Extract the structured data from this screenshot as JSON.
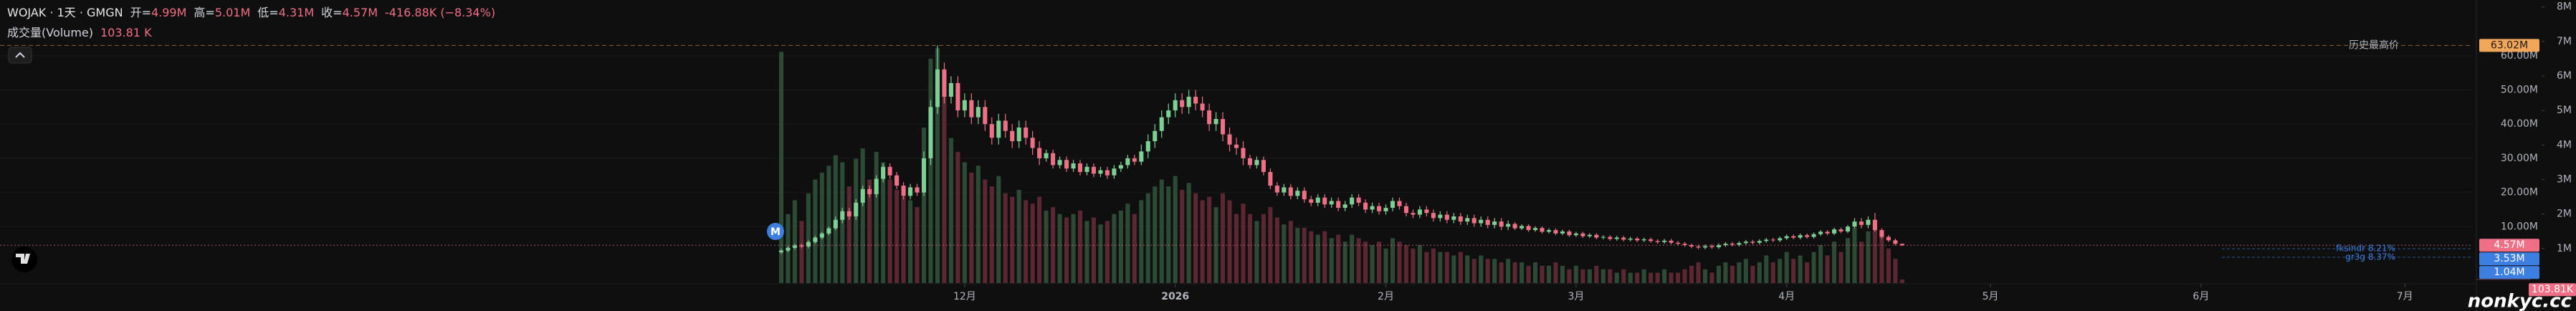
{
  "chart_data": {
    "type": "candlestick",
    "title": "WOJAK · 1天 · GMGN",
    "ohlc_legend": [
      {
        "label": "开=",
        "value": "4.99M"
      },
      {
        "label": "高=",
        "value": "5.01M"
      },
      {
        "label": "低=",
        "value": "4.31M"
      },
      {
        "label": "收=",
        "value": "4.57M"
      }
    ],
    "change": "-416.88K (−8.34%)",
    "volume_legend": {
      "name": "成交量(Volume)",
      "value": "103.81 K"
    },
    "up_color": "#7ccf95",
    "down_color": "#ef6f86",
    "volume_up_color": "#2d4a36",
    "volume_down_color": "#5a2733",
    "grid": true,
    "xlim": [
      -115,
      249
    ],
    "xticks": [
      {
        "value": 27,
        "label": "12月"
      },
      {
        "value": 58,
        "label": "2026"
      },
      {
        "value": 89,
        "label": "2月"
      },
      {
        "value": 117,
        "label": "3月"
      },
      {
        "value": 148,
        "label": "4月"
      },
      {
        "value": 178,
        "label": "5月"
      },
      {
        "value": 209,
        "label": "6月"
      },
      {
        "value": 239,
        "label": "7月"
      }
    ],
    "ylim": [
      -6500000,
      76300000
    ],
    "yticks": [
      {
        "value": 10000000,
        "label": "10.00M"
      },
      {
        "value": 20000000,
        "label": "20.00M"
      },
      {
        "value": 30000000,
        "label": "30.00M"
      },
      {
        "value": 40000000,
        "label": "40.00M"
      },
      {
        "value": 50000000,
        "label": "50.00M"
      },
      {
        "value": 60000000,
        "label": "60.00M"
      }
    ],
    "y2lim": [
      0,
      8200000
    ],
    "y2ticks": [
      {
        "value": 1000000,
        "label": "1M"
      },
      {
        "value": 2000000,
        "label": "2M"
      },
      {
        "value": 3000000,
        "label": "3M"
      },
      {
        "value": 4000000,
        "label": "4M"
      },
      {
        "value": 5000000,
        "label": "5M"
      },
      {
        "value": 6000000,
        "label": "6M"
      },
      {
        "value": 7000000,
        "label": "7M"
      },
      {
        "value": 8000000,
        "label": "8M"
      }
    ],
    "open": [
      2500000,
      3000000,
      3800000,
      4500000,
      4200000,
      5500000,
      6800000,
      8000000,
      9500000,
      12000000,
      14500000,
      13000000,
      17000000,
      21000000,
      19500000,
      24000000,
      27500000,
      25000000,
      22000000,
      19000000,
      21500000,
      20000000,
      30000000,
      45000000,
      56000000,
      48000000,
      52000000,
      44000000,
      47000000,
      42000000,
      45000000,
      40000000,
      36000000,
      41000000,
      38000000,
      35000000,
      39000000,
      36000000,
      33000000,
      30000000,
      31500000,
      28000000,
      29500000,
      27000000,
      28500000,
      26000000,
      27500000,
      25500000,
      26500000,
      25000000,
      27000000,
      28000000,
      30000000,
      29000000,
      32000000,
      35000000,
      38000000,
      42000000,
      44000000,
      47000000,
      45000000,
      48000000,
      46000000,
      44000000,
      40000000,
      41500000,
      37000000,
      34000000,
      33000000,
      30000000,
      28000000,
      29500000,
      26000000,
      22000000,
      20000000,
      21500000,
      19000000,
      20500000,
      18000000,
      17000000,
      18500000,
      16500000,
      17500000,
      15500000,
      16500000,
      18500000,
      17000000,
      15000000,
      16000000,
      14500000,
      15500000,
      17500000,
      16000000,
      14000000,
      13500000,
      15000000,
      14000000,
      12500000,
      13500000,
      12000000,
      13000000,
      11500000,
      12500000,
      11000000,
      12000000,
      10500000,
      11500000,
      10000000,
      10800000,
      9500000,
      10200000,
      9000000,
      9600000,
      8500000,
      9000000,
      8000000,
      8600000,
      7500000,
      8000000,
      7200000,
      7600000,
      6800000,
      7000000,
      6400000,
      6800000,
      6200000,
      6500000,
      6000000,
      6300000,
      5800000,
      5500000,
      5900000,
      5300000,
      5000000,
      4600000,
      4200000,
      3900000,
      4300000,
      4000000,
      4600000,
      5000000,
      4700000,
      5200000,
      5600000,
      5300000,
      5800000,
      6200000,
      6000000,
      6600000,
      7200000,
      6800000,
      7500000,
      7000000,
      7800000,
      8500000,
      8000000,
      9200000,
      8600000,
      10000000,
      11500000,
      10500000,
      12000000,
      9000000,
      7000000,
      6000000,
      4990000
    ],
    "high": [
      3500000,
      4300000,
      5000000,
      5000000,
      6000000,
      7300000,
      8500000,
      10000000,
      13000000,
      15500000,
      15500000,
      18000000,
      22000000,
      22000000,
      25000000,
      28500000,
      28500000,
      26000000,
      23000000,
      22500000,
      22500000,
      32000000,
      47000000,
      63020000,
      58000000,
      54000000,
      54000000,
      49000000,
      49000000,
      47000000,
      47000000,
      42000000,
      43000000,
      43000000,
      40000000,
      41000000,
      41000000,
      38000000,
      35000000,
      32500000,
      32500000,
      30500000,
      30500000,
      29500000,
      29500000,
      28500000,
      28500000,
      27500000,
      27500000,
      28000000,
      29000000,
      31000000,
      31000000,
      34000000,
      37000000,
      40000000,
      44000000,
      46000000,
      49000000,
      49000000,
      50000000,
      50000000,
      48000000,
      46000000,
      43500000,
      43500000,
      39000000,
      36000000,
      35000000,
      31000000,
      30500000,
      30500000,
      27000000,
      23000000,
      22500000,
      22500000,
      21500000,
      21500000,
      19000000,
      19500000,
      19500000,
      18500000,
      18500000,
      17500000,
      19500000,
      19500000,
      18000000,
      17000000,
      17000000,
      16500000,
      18500000,
      18500000,
      17000000,
      15000000,
      16000000,
      16000000,
      15000000,
      14500000,
      14500000,
      14000000,
      14000000,
      13500000,
      13500000,
      13000000,
      13000000,
      12500000,
      12500000,
      11800000,
      11300000,
      10700000,
      10700000,
      10100000,
      10100000,
      9500000,
      9500000,
      9100000,
      9100000,
      8500000,
      8500000,
      8100000,
      8100000,
      7500000,
      7500000,
      7300000,
      7300000,
      7000000,
      7000000,
      6800000,
      6800000,
      6300000,
      6400000,
      6400000,
      5800000,
      5500000,
      5100000,
      4700000,
      4800000,
      4800000,
      5100000,
      5500000,
      5500000,
      5700000,
      6100000,
      6100000,
      6300000,
      6700000,
      6700000,
      7100000,
      7700000,
      7700000,
      8000000,
      8000000,
      8300000,
      9000000,
      9000000,
      9700000,
      9700000,
      10500000,
      12500000,
      12500000,
      13000000,
      14000000,
      9500000,
      7500000,
      6500000,
      5010000
    ],
    "low": [
      2000000,
      2500000,
      3300000,
      3700000,
      3700000,
      5000000,
      6300000,
      7500000,
      9000000,
      11000000,
      12000000,
      12000000,
      16000000,
      18500000,
      18500000,
      23000000,
      24000000,
      21000000,
      18000000,
      18000000,
      19000000,
      19000000,
      28000000,
      43000000,
      46000000,
      46000000,
      42000000,
      42000000,
      40000000,
      40000000,
      38000000,
      34000000,
      34000000,
      36000000,
      33000000,
      33000000,
      34000000,
      31000000,
      28000000,
      29000000,
      27000000,
      27000000,
      26000000,
      26000000,
      25000000,
      25000000,
      24500000,
      24500000,
      24000000,
      24000000,
      26000000,
      27000000,
      28000000,
      28000000,
      30000000,
      33000000,
      36000000,
      40000000,
      42000000,
      43000000,
      43000000,
      44000000,
      42000000,
      38000000,
      38000000,
      35000000,
      32000000,
      31000000,
      28000000,
      27000000,
      27000000,
      25000000,
      21000000,
      19000000,
      19000000,
      18000000,
      18000000,
      17000000,
      16000000,
      16000000,
      15500000,
      15500000,
      14500000,
      14500000,
      15500000,
      16000000,
      14000000,
      14000000,
      13500000,
      13500000,
      14500000,
      15000000,
      13000000,
      12500000,
      12500000,
      13000000,
      11500000,
      11500000,
      11000000,
      11000000,
      10500000,
      10500000,
      10000000,
      10000000,
      9500000,
      9500000,
      9000000,
      9000000,
      9000000,
      9000000,
      8500000,
      8500000,
      8000000,
      8000000,
      7500000,
      7500000,
      7000000,
      7000000,
      6700000,
      6700000,
      6300000,
      6300000,
      5900000,
      5900000,
      5700000,
      5700000,
      5500000,
      5500000,
      5300000,
      5000000,
      5000000,
      4800000,
      4500000,
      4100000,
      3700000,
      3400000,
      3400000,
      3500000,
      3500000,
      4100000,
      4200000,
      4200000,
      4700000,
      4800000,
      4800000,
      5300000,
      5500000,
      5500000,
      6100000,
      6300000,
      6300000,
      6500000,
      6500000,
      7300000,
      7500000,
      7500000,
      8100000,
      8100000,
      9500000,
      9500000,
      9500000,
      8500000,
      6500000,
      5500000,
      4500000,
      4310000
    ],
    "close": [
      3000000,
      3800000,
      4500000,
      4200000,
      5500000,
      6800000,
      8000000,
      9500000,
      12000000,
      14500000,
      13000000,
      17000000,
      21000000,
      19500000,
      24000000,
      27500000,
      25000000,
      22000000,
      19000000,
      21500000,
      20000000,
      30000000,
      45000000,
      56000000,
      48000000,
      52000000,
      44000000,
      47000000,
      42000000,
      45000000,
      40000000,
      36000000,
      41000000,
      38000000,
      35000000,
      39000000,
      36000000,
      33000000,
      30000000,
      31500000,
      28000000,
      29500000,
      27000000,
      28500000,
      26000000,
      27500000,
      25500000,
      26500000,
      25000000,
      27000000,
      28000000,
      30000000,
      29000000,
      32000000,
      35000000,
      38000000,
      42000000,
      44000000,
      47000000,
      45000000,
      48000000,
      46000000,
      44000000,
      40000000,
      41500000,
      37000000,
      34000000,
      33000000,
      30000000,
      28000000,
      29500000,
      26000000,
      22000000,
      20000000,
      21500000,
      19000000,
      20500000,
      18000000,
      17000000,
      18500000,
      16500000,
      17500000,
      15500000,
      16500000,
      18500000,
      17000000,
      15000000,
      16000000,
      14500000,
      15500000,
      17500000,
      16000000,
      14000000,
      13500000,
      15000000,
      14000000,
      12500000,
      13500000,
      12000000,
      13000000,
      11500000,
      12500000,
      11000000,
      12000000,
      10500000,
      11500000,
      10000000,
      10800000,
      9500000,
      10200000,
      9000000,
      9600000,
      8500000,
      9000000,
      8000000,
      8600000,
      7500000,
      8000000,
      7200000,
      7600000,
      6800000,
      7000000,
      6400000,
      6800000,
      6200000,
      6500000,
      6000000,
      6300000,
      5800000,
      5500000,
      5900000,
      5300000,
      5000000,
      4600000,
      4200000,
      3900000,
      4300000,
      4000000,
      4600000,
      5000000,
      4700000,
      5200000,
      5600000,
      5300000,
      5800000,
      6200000,
      6000000,
      6600000,
      7200000,
      6800000,
      7500000,
      7000000,
      7800000,
      8500000,
      8000000,
      9200000,
      8600000,
      10000000,
      11500000,
      10500000,
      12000000,
      9000000,
      7000000,
      6000000,
      4990000,
      4570000
    ],
    "volume": [
      6700000,
      2000000,
      2400000,
      1800000,
      2600000,
      3000000,
      3200000,
      3400000,
      3700000,
      3500000,
      2800000,
      3600000,
      3900000,
      3000000,
      3800000,
      3500000,
      3000000,
      2700000,
      2500000,
      2400000,
      2200000,
      4500000,
      6500000,
      6800000,
      5400000,
      4200000,
      3800000,
      3500000,
      3200000,
      3400000,
      3000000,
      2800000,
      3100000,
      2600000,
      2500000,
      2700000,
      2400000,
      2300000,
      2500000,
      2100000,
      2200000,
      2000000,
      1900000,
      2000000,
      2100000,
      1800000,
      1900000,
      1700000,
      1800000,
      2000000,
      2100000,
      2300000,
      2000000,
      2400000,
      2600000,
      2800000,
      3000000,
      2800000,
      3100000,
      2700000,
      2900000,
      2600000,
      2400000,
      2500000,
      2200000,
      2600000,
      2400000,
      2000000,
      2300000,
      2000000,
      1800000,
      2000000,
      2200000,
      1900000,
      1700000,
      1800000,
      1600000,
      1600000,
      1500000,
      1400000,
      1500000,
      1300000,
      1400000,
      1200000,
      1400000,
      1300000,
      1200000,
      1100000,
      1200000,
      1000000,
      1300000,
      1200000,
      1100000,
      1000000,
      1100000,
      900000,
      1000000,
      900000,
      900000,
      800000,
      900000,
      800000,
      700000,
      800000,
      700000,
      700000,
      600000,
      700000,
      600000,
      600000,
      500000,
      600000,
      500000,
      500000,
      600000,
      500000,
      400000,
      500000,
      400000,
      400000,
      500000,
      400000,
      400000,
      300000,
      400000,
      300000,
      300000,
      400000,
      300000,
      300000,
      400000,
      300000,
      300000,
      400000,
      500000,
      600000,
      400000,
      300000,
      500000,
      600000,
      500000,
      600000,
      700000,
      500000,
      600000,
      800000,
      600000,
      700000,
      900000,
      700000,
      800000,
      600000,
      900000,
      1100000,
      800000,
      1200000,
      900000,
      1300000,
      1600000,
      1200000,
      1500000,
      1800000,
      1400000,
      1000000,
      700000,
      103810
    ],
    "ath": {
      "label": "历史最高价",
      "value": 63020000,
      "value_label": "63.02M",
      "color": "#f2a65a"
    },
    "last_price": {
      "value": 4570000,
      "value_label": "4.57M"
    },
    "last_volume": {
      "value": 103810,
      "value_label": "103.81K"
    },
    "annotations": [
      {
        "text": "fksindr 8.21%",
        "value": 3530000,
        "value_label": "3.53M",
        "color": "#3d7fe0"
      },
      {
        "text": "gr3g 8.37%",
        "value": 1040000,
        "value_label": "1.04M",
        "color": "#3d7fe0"
      }
    ],
    "marker": {
      "text": "M",
      "color": "#3d7fe0"
    },
    "watermark": "nonkyc.cc"
  }
}
